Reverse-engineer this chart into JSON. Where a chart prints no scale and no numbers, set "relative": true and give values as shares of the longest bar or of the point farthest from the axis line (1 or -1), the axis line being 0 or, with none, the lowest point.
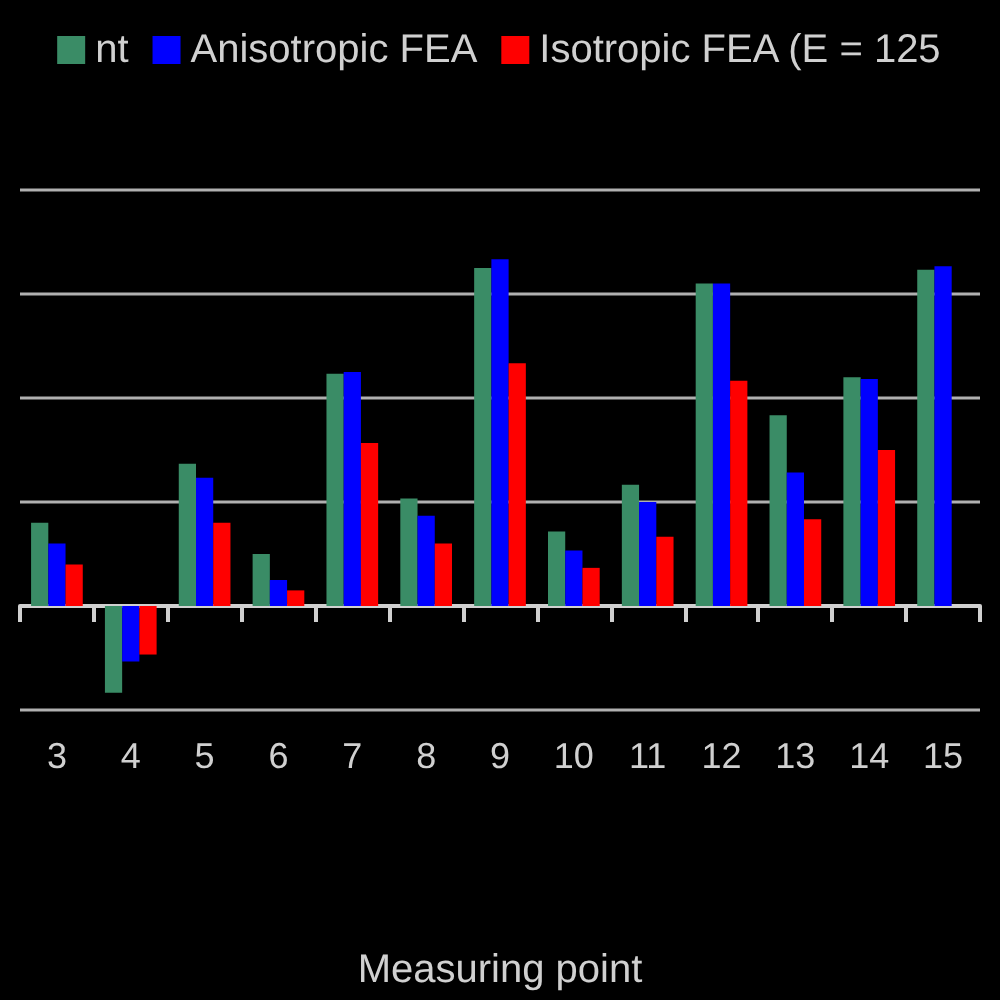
{
  "chart_data": {
    "type": "bar",
    "relative": true,
    "xlabel": "Measuring point",
    "categories": [
      "3",
      "4",
      "5",
      "6",
      "7",
      "8",
      "9",
      "10",
      "11",
      "12",
      "13",
      "14",
      "15"
    ],
    "series": [
      {
        "name": "nt",
        "color": "#3a8c66",
        "values": [
          0.24,
          -0.25,
          0.41,
          0.15,
          0.67,
          0.31,
          0.975,
          0.215,
          0.35,
          0.93,
          0.55,
          0.66,
          0.97
        ]
      },
      {
        "name": "Anisotropic FEA",
        "color": "#0000ff",
        "values": [
          0.18,
          -0.16,
          0.37,
          0.075,
          0.675,
          0.26,
          1,
          0.16,
          0.3,
          0.93,
          0.385,
          0.655,
          0.98
        ]
      },
      {
        "name": "Isotropic FEA (E = 125",
        "color": "#ff0000",
        "values": [
          0.12,
          -0.14,
          0.24,
          0.045,
          0.47,
          0.18,
          0.7,
          0.11,
          0.2,
          0.65,
          0.25,
          0.45,
          null
        ]
      }
    ],
    "grid": "y",
    "legend": "top"
  }
}
